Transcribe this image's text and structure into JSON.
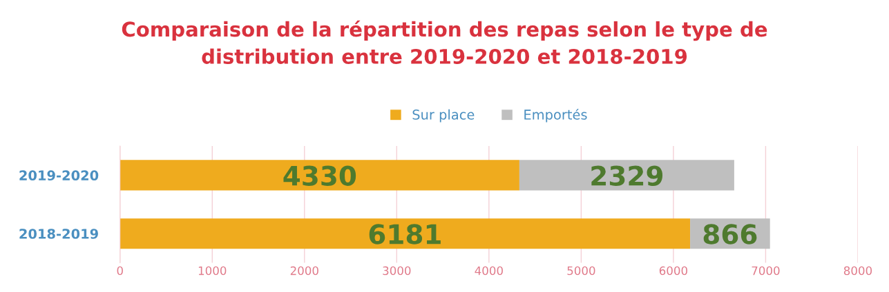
{
  "chart_data": {
    "type": "bar",
    "orientation": "horizontal",
    "stacked": true,
    "title": "Comparaison de la répartition des repas selon le type de\ndistribution entre 2019-2020 et 2018-2019",
    "categories": [
      "2019-2020",
      "2018-2019"
    ],
    "series": [
      {
        "name": "Sur place",
        "color": "#efab1e",
        "values": [
          4330,
          6181
        ]
      },
      {
        "name": "Emportés",
        "color": "#bfbfbf",
        "values": [
          2329,
          866
        ]
      }
    ],
    "xlim": [
      0,
      8000
    ],
    "xticks": [
      0,
      1000,
      2000,
      3000,
      4000,
      5000,
      6000,
      7000,
      8000
    ],
    "grid": "x",
    "legend": "top",
    "data_labels": true
  }
}
